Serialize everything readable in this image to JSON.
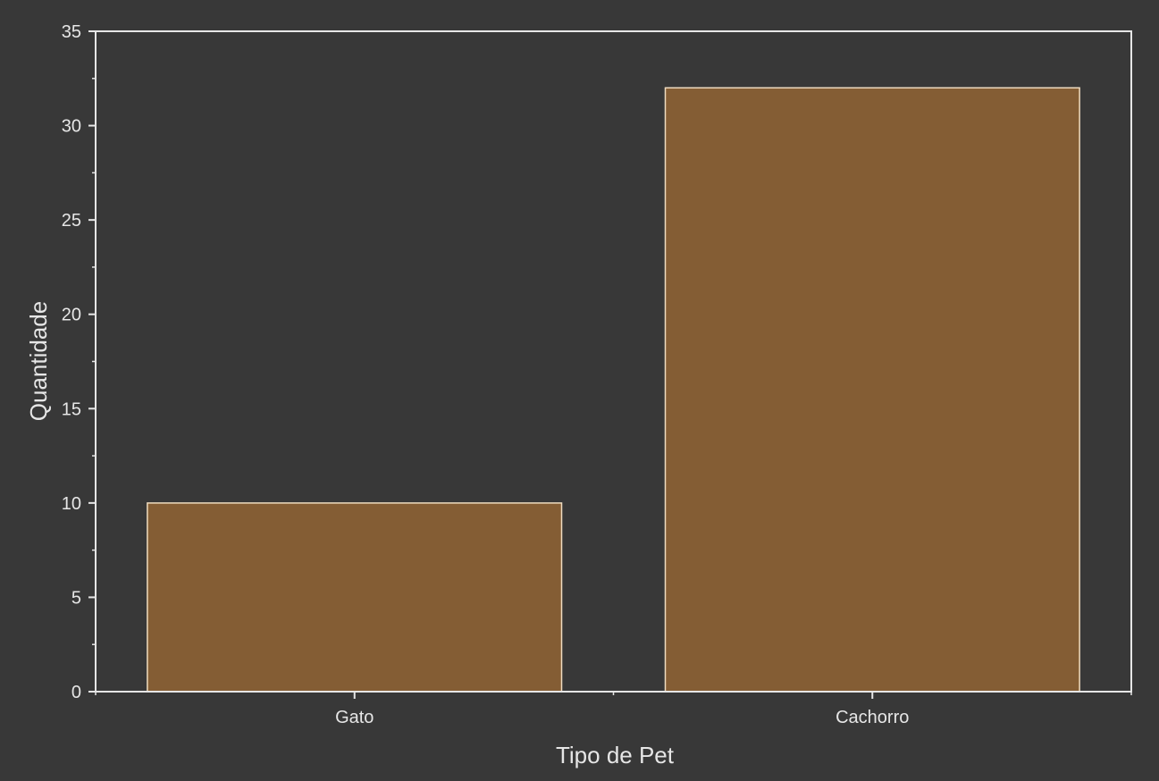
{
  "chart_data": {
    "type": "bar",
    "categories": [
      "Gato",
      "Cachorro"
    ],
    "values": [
      10,
      32
    ],
    "title": "",
    "xlabel": "Tipo de Pet",
    "ylabel": "Quantidade",
    "ylim": [
      0,
      35
    ],
    "yticks": [
      0,
      5,
      10,
      15,
      20,
      25,
      30,
      35
    ],
    "yticks_minor_step": 2.5,
    "grid": false,
    "legend": "none"
  },
  "colors": {
    "background": "#383838",
    "bar_fill": "#845D34",
    "bar_stroke": "#F0DCC0",
    "axis": "#E6E6E6",
    "text": "#E6E6E6"
  }
}
